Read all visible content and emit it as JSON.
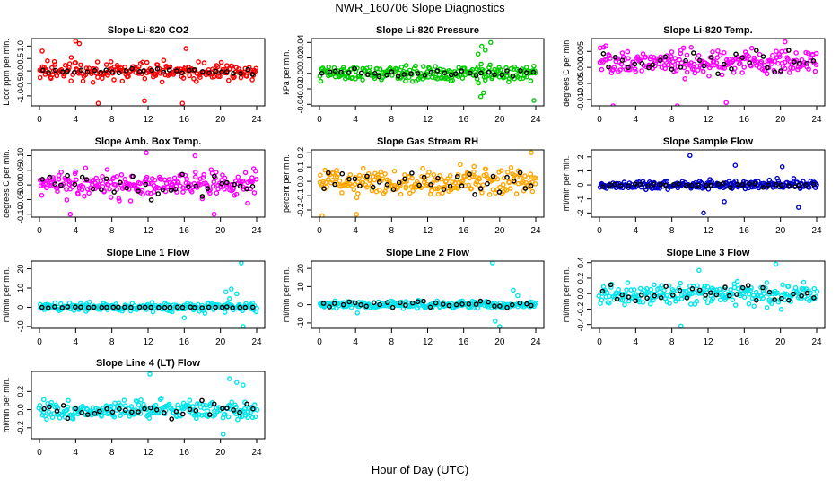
{
  "figure": {
    "title": "NWR_160706  Slope Diagnostics",
    "xlabel": "Hour of Day (UTC)"
  },
  "chart_data": [
    {
      "type": "scatter",
      "title": "Slope Li-820 CO2",
      "ylabel": "Licor ppm per min.",
      "xlim": [
        0,
        24
      ],
      "ylim": [
        -1.4,
        1.3
      ],
      "yticks": [
        -1.0,
        -0.5,
        0.0,
        0.5,
        1.0
      ],
      "ytick_labels": [
        "-1.0",
        "-0.5",
        "0.0",
        "0.5",
        "1.0"
      ],
      "xticks": [
        0,
        4,
        8,
        12,
        16,
        20,
        24
      ],
      "color": "#ff0000",
      "base": 0.0,
      "spread": 0.35,
      "outliers": [
        [
          0.3,
          0.8
        ],
        [
          4.0,
          1.2
        ],
        [
          4.4,
          1.1
        ],
        [
          6.5,
          -1.3
        ],
        [
          11.6,
          -1.2
        ],
        [
          15.8,
          -1.3
        ],
        [
          16.2,
          0.9
        ]
      ],
      "black_spread": 0.12,
      "grid": false,
      "legend": "none"
    },
    {
      "type": "scatter",
      "title": "Slope Li-820 Pressure",
      "ylabel": "kPa per min.",
      "xlim": [
        0,
        24
      ],
      "ylim": [
        -0.042,
        0.045
      ],
      "yticks": [
        -0.04,
        -0.02,
        0.0,
        0.02,
        0.04
      ],
      "ytick_labels": [
        "-0.04",
        "-0.02",
        "0.00",
        "0.02",
        "0.04"
      ],
      "xticks": [
        0,
        4,
        8,
        12,
        16,
        20,
        24
      ],
      "color": "#00cc00",
      "base": 0.0,
      "spread": 0.009,
      "outliers": [
        [
          17.6,
          0.025
        ],
        [
          18.0,
          0.035
        ],
        [
          18.4,
          0.03
        ],
        [
          18.2,
          -0.025
        ],
        [
          17.9,
          -0.03
        ],
        [
          23.8,
          -0.035
        ],
        [
          19.0,
          0.04
        ]
      ],
      "black_spread": 0.004,
      "grid": false,
      "legend": "none"
    },
    {
      "type": "scatter",
      "title": "Slope Li-820 Temp.",
      "ylabel": "degrees C per min.",
      "xlim": [
        0,
        24
      ],
      "ylim": [
        -0.012,
        0.009
      ],
      "yticks": [
        -0.01,
        -0.005,
        0.0,
        0.005
      ],
      "ytick_labels": [
        "-0.010",
        "-0.005",
        "0.000",
        "0.005"
      ],
      "xticks": [
        0,
        4,
        8,
        12,
        16,
        20,
        24
      ],
      "color": "#ff00ff",
      "base": 0.0015,
      "spread": 0.0038,
      "outliers": [
        [
          1.5,
          -0.012
        ],
        [
          8.6,
          -0.012
        ],
        [
          14.0,
          -0.011
        ],
        [
          20.5,
          0.008
        ]
      ],
      "black_spread": 0.004,
      "grid": false,
      "legend": "none"
    },
    {
      "type": "scatter",
      "title": "Slope Amb. Box Temp.",
      "ylabel": "degrees C per min.",
      "xlim": [
        0,
        24
      ],
      "ylim": [
        -0.11,
        0.12
      ],
      "yticks": [
        -0.1,
        -0.05,
        0.0,
        0.05,
        0.1
      ],
      "ytick_labels": [
        "-0.10",
        "-0.05",
        "0.00",
        "0.05",
        "0.10"
      ],
      "xticks": [
        0,
        4,
        8,
        12,
        16,
        20,
        24
      ],
      "color": "#ff00ff",
      "base": 0.0,
      "spread": 0.04,
      "outliers": [
        [
          11.8,
          0.11
        ],
        [
          17.2,
          0.1
        ],
        [
          3.4,
          -0.1
        ],
        [
          19.3,
          -0.1
        ]
      ],
      "black_spread": 0.04,
      "grid": false,
      "legend": "none"
    },
    {
      "type": "scatter",
      "title": "Slope Gas Stream RH",
      "ylabel": "percent per min.",
      "xlim": [
        0,
        24
      ],
      "ylim": [
        -0.25,
        0.22
      ],
      "yticks": [
        -0.2,
        -0.1,
        0.0,
        0.1,
        0.2
      ],
      "ytick_labels": [
        "-0.2",
        "-0.1",
        "0.0",
        "0.1",
        "0.2"
      ],
      "xticks": [
        0,
        4,
        8,
        12,
        16,
        20,
        24
      ],
      "color": "#ffa500",
      "base": 0.0,
      "spread": 0.09,
      "outliers": [
        [
          0.3,
          -0.24
        ],
        [
          4.1,
          -0.23
        ],
        [
          23.5,
          0.2
        ]
      ],
      "black_spread": 0.08,
      "grid": false,
      "legend": "none"
    },
    {
      "type": "scatter",
      "title": "Slope Sample Flow",
      "ylabel": "ml/min per min.",
      "xlim": [
        0,
        24
      ],
      "ylim": [
        -2.3,
        2.5
      ],
      "yticks": [
        -2,
        -1,
        0,
        1,
        2
      ],
      "ytick_labels": [
        "-2",
        "-1",
        "0",
        "1",
        "2"
      ],
      "xticks": [
        0,
        4,
        8,
        12,
        16,
        20,
        24
      ],
      "color": "#0000cc",
      "base": 0.0,
      "spread": 0.3,
      "outliers": [
        [
          10.0,
          2.1
        ],
        [
          11.5,
          -2.0
        ],
        [
          13.8,
          -1.2
        ],
        [
          15.0,
          1.4
        ],
        [
          20.2,
          1.3
        ],
        [
          22.0,
          -1.6
        ]
      ],
      "black_spread": 0.15,
      "grid": false,
      "legend": "none"
    },
    {
      "type": "scatter",
      "title": "Slope Line 1 Flow",
      "ylabel": "ml/min per min.",
      "xlim": [
        0,
        24
      ],
      "ylim": [
        -11,
        24
      ],
      "yticks": [
        -10,
        0,
        10,
        20
      ],
      "ytick_labels": [
        "-10",
        "0",
        "10",
        "20"
      ],
      "xticks": [
        0,
        4,
        8,
        12,
        16,
        20,
        24
      ],
      "color": "#00e5ee",
      "base": 0.0,
      "spread": 2.0,
      "outliers": [
        [
          20.6,
          8.0
        ],
        [
          21.2,
          9.5
        ],
        [
          21.8,
          7.0
        ],
        [
          22.3,
          23.0
        ],
        [
          16.0,
          -5.5
        ],
        [
          22.5,
          -10.0
        ],
        [
          21.0,
          4.5
        ]
      ],
      "black_spread": 0.3,
      "grid": false,
      "legend": "none"
    },
    {
      "type": "scatter",
      "title": "Slope Line 2 Flow",
      "ylabel": "ml/min per min.",
      "xlim": [
        0,
        24
      ],
      "ylim": [
        -13,
        24
      ],
      "yticks": [
        -10,
        0,
        10,
        20
      ],
      "ytick_labels": [
        "-10",
        "0",
        "10",
        "20"
      ],
      "xticks": [
        0,
        4,
        8,
        12,
        16,
        20,
        24
      ],
      "color": "#00e5ee",
      "base": 0.0,
      "spread": 1.8,
      "outliers": [
        [
          19.2,
          23.0
        ],
        [
          21.5,
          8.0
        ],
        [
          22.0,
          5.0
        ],
        [
          19.5,
          -9.0
        ],
        [
          20.0,
          -12.0
        ],
        [
          4.2,
          -4.5
        ]
      ],
      "black_spread": 1.5,
      "grid": false,
      "legend": "none"
    },
    {
      "type": "scatter",
      "title": "Slope Line 3 Flow",
      "ylabel": "ml/min per min.",
      "xlim": [
        0,
        24
      ],
      "ylim": [
        -0.45,
        0.42
      ],
      "yticks": [
        -0.4,
        -0.2,
        0.0,
        0.2,
        0.4
      ],
      "ytick_labels": [
        "-0.4",
        "-0.2",
        "0.0",
        "0.2",
        "0.4"
      ],
      "xticks": [
        0,
        4,
        8,
        12,
        16,
        20,
        24
      ],
      "color": "#00e5ee",
      "base": 0.0,
      "spread": 0.13,
      "outliers": [
        [
          9.0,
          -0.42
        ],
        [
          19.5,
          0.38
        ],
        [
          11.0,
          0.3
        ]
      ],
      "black_spread": 0.1,
      "grid": false,
      "legend": "none"
    },
    {
      "type": "scatter",
      "title": "Slope Line 4 (LT) Flow",
      "ylabel": "ml/min per min.",
      "xlim": [
        0,
        24
      ],
      "ylim": [
        -0.32,
        0.42
      ],
      "yticks": [
        -0.2,
        0.0,
        0.2
      ],
      "ytick_labels": [
        "-0.2",
        "0.0",
        "0.2"
      ],
      "xticks": [
        0,
        4,
        8,
        12,
        16,
        20,
        24
      ],
      "color": "#00e5ee",
      "base": 0.0,
      "spread": 0.1,
      "outliers": [
        [
          12.2,
          0.39
        ],
        [
          21.0,
          0.34
        ],
        [
          21.8,
          0.3
        ],
        [
          22.5,
          0.27
        ],
        [
          20.3,
          -0.27
        ]
      ],
      "black_spread": 0.09,
      "grid": false,
      "legend": "none"
    }
  ]
}
